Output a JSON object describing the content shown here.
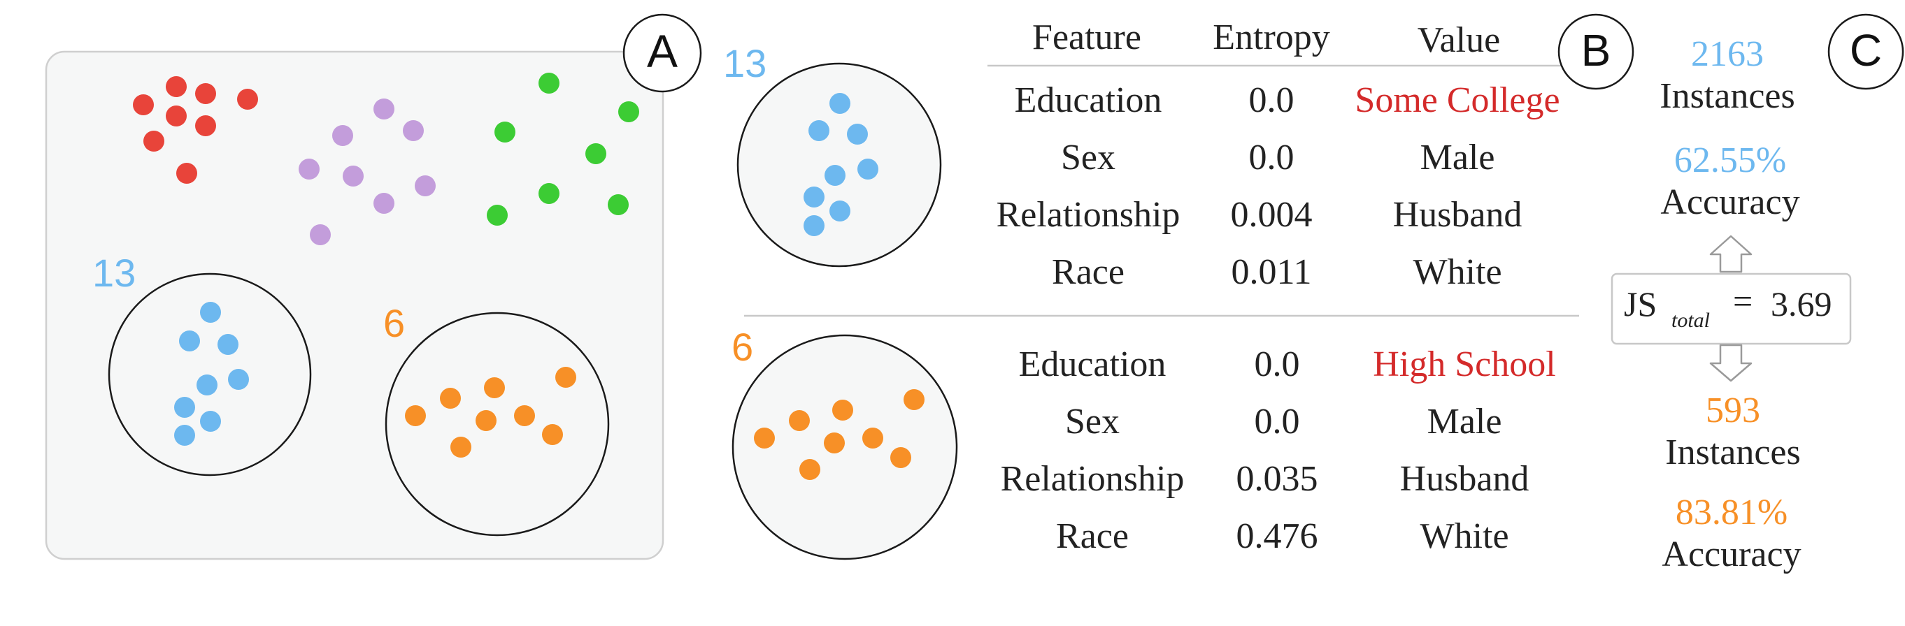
{
  "panel_labels": {
    "a": "A",
    "b": "B",
    "c": "C"
  },
  "colors": {
    "red_cluster": "#e8443a",
    "purple_cluster": "#c39ddb",
    "green_cluster": "#3ccc34",
    "blue_cluster": "#6db8ef",
    "orange_cluster": "#f79027",
    "highlight_value": "#d42a2a",
    "panel_fill": "#f6f7f7",
    "rule": "#c8c8c8"
  },
  "panel_a": {
    "blue_cluster_label": "13",
    "orange_cluster_label": "6"
  },
  "panel_b": {
    "headers": {
      "feature": "Feature",
      "entropy": "Entropy",
      "value": "Value"
    },
    "top": {
      "cluster_label": "13",
      "rows": [
        {
          "feature": "Education",
          "entropy": "0.0",
          "value": "Some College",
          "highlight": true
        },
        {
          "feature": "Sex",
          "entropy": "0.0",
          "value": "Male",
          "highlight": false
        },
        {
          "feature": "Relationship",
          "entropy": "0.004",
          "value": "Husband",
          "highlight": false
        },
        {
          "feature": "Race",
          "entropy": "0.011",
          "value": "White",
          "highlight": false
        }
      ]
    },
    "bottom": {
      "cluster_label": "6",
      "rows": [
        {
          "feature": "Education",
          "entropy": "0.0",
          "value": "High School",
          "highlight": true
        },
        {
          "feature": "Sex",
          "entropy": "0.0",
          "value": "Male",
          "highlight": false
        },
        {
          "feature": "Relationship",
          "entropy": "0.035",
          "value": "Husband",
          "highlight": false
        },
        {
          "feature": "Race",
          "entropy": "0.476",
          "value": "White",
          "highlight": false
        }
      ]
    }
  },
  "panel_c": {
    "top_instances_value": "2163",
    "top_instances_label": "Instances",
    "top_accuracy_value": "62.55%",
    "top_accuracy_label": "Accuracy",
    "js_symbol": "JS",
    "js_subscript": "total",
    "js_equals": "=",
    "js_value": "3.69",
    "bottom_instances_value": "593",
    "bottom_instances_label": "Instances",
    "bottom_accuracy_value": "83.81%",
    "bottom_accuracy_label": "Accuracy"
  }
}
